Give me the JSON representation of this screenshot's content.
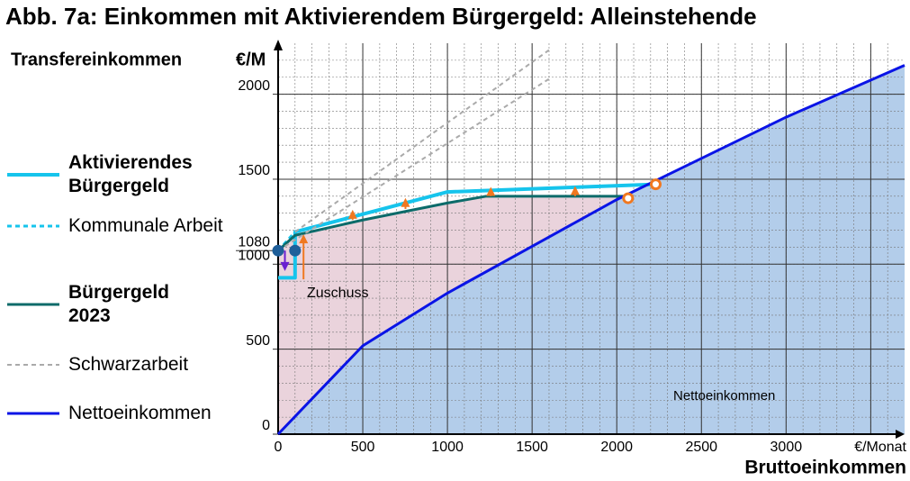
{
  "chart_data": {
    "type": "line",
    "title": "Abb. 7a:  Einkommen mit Aktivierendem Bürgergeld:  Alleinstehende",
    "y_label": "Transfereinkommen",
    "y_unit": "€/M",
    "x_label": "Bruttoeinkommen",
    "x_unit": "€/Monat",
    "xlim": [
      0,
      3700
    ],
    "ylim": [
      0,
      2300
    ],
    "xticks": [
      0,
      500,
      1000,
      1500,
      2000,
      2500,
      3000
    ],
    "yticks": [
      0,
      500,
      1000,
      1080,
      1500,
      2000
    ],
    "grid": true,
    "minor_grid": 100,
    "series": [
      {
        "name": "Aktivierendes Bürgergeld",
        "color": "#16c4ec",
        "width": 4,
        "bold": true,
        "x": [
          0,
          100,
          100,
          1000,
          2230
        ],
        "values": [
          920,
          920,
          1190,
          1425,
          1470
        ]
      },
      {
        "name": "Kommunale Arbeit",
        "color": "#16c4ec",
        "width": 3,
        "dash": true,
        "x": [
          0,
          100
        ],
        "values": [
          1080,
          1190
        ]
      },
      {
        "name": "Bürgergeld 2023",
        "color": "#0c6b6a",
        "width": 3,
        "bold": true,
        "fill": "#ead3dc",
        "x": [
          0,
          100,
          500,
          1000,
          1230,
          2070
        ],
        "values": [
          1080,
          1170,
          1260,
          1360,
          1400,
          1400
        ]
      },
      {
        "name": "Schwarzarbeit",
        "color": "#aaaaaa",
        "width": 2,
        "dash": true,
        "x": [
          100,
          1600
        ],
        "values": [
          1190,
          2260
        ]
      },
      {
        "color": "#aaaaaa",
        "width": 2,
        "dash": true,
        "x": [
          0,
          1600
        ],
        "values": [
          1080,
          2090
        ]
      },
      {
        "name": "Nettoeinkommen",
        "color": "#0a14e6",
        "width": 3,
        "fill": "#b3cdea",
        "x": [
          0,
          500,
          1000,
          2000,
          3000,
          3700
        ],
        "values": [
          0,
          520,
          830,
          1380,
          1865,
          2170
        ]
      }
    ],
    "points": [
      {
        "x": 0,
        "y": 1080,
        "color": "#1f5f9a",
        "filled": true
      },
      {
        "x": 100,
        "y": 1080,
        "color": "#1f5f9a",
        "filled": true
      },
      {
        "x": 2067,
        "y": 1388,
        "color": "#f07820",
        "filled": false
      },
      {
        "x": 2230,
        "y": 1470,
        "color": "#f07820",
        "filled": false
      }
    ],
    "arrows": [
      {
        "x": 40,
        "from": 1080,
        "to": 960,
        "color": "#6a1fd0"
      },
      {
        "x": 150,
        "from": 911,
        "to": 1176,
        "color": "#f07820"
      },
      {
        "x": 440,
        "from": 1260,
        "to": 1320,
        "color": "#f07820"
      },
      {
        "x": 752,
        "from": 1325,
        "to": 1390,
        "color": "#f07820"
      },
      {
        "x": 1256,
        "from": 1400,
        "to": 1455,
        "color": "#f07820"
      },
      {
        "x": 1754,
        "from": 1400,
        "to": 1460,
        "color": "#f07820"
      }
    ],
    "annotations": [
      "Zuschuss",
      "Nettoeinkommen"
    ]
  }
}
